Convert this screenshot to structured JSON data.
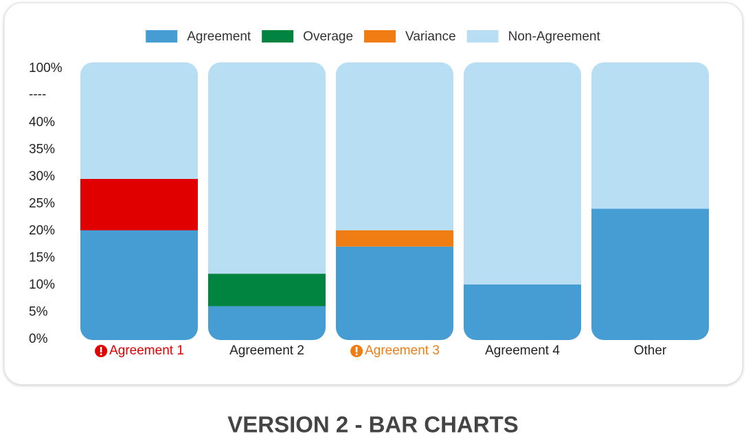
{
  "chart_data": {
    "type": "stacked-bar",
    "categories": [
      "Agreement 1",
      "Agreement 2",
      "Agreement 3",
      "Agreement 4",
      "Other"
    ],
    "category_colors": [
      "#e00000",
      "#222222",
      "#f07d14",
      "#222222",
      "#222222"
    ],
    "category_alerts": [
      true,
      false,
      true,
      false,
      false
    ],
    "series": [
      {
        "name": "Agreement",
        "color": "#459dd3",
        "values": [
          20,
          6,
          17,
          10,
          24
        ]
      },
      {
        "name": "Overage",
        "color": "#00843f",
        "point_colors": [
          "#e00000",
          "#00843f",
          "#00843f",
          "#00843f",
          "#00843f"
        ],
        "values": [
          9.5,
          6,
          0,
          0,
          0
        ]
      },
      {
        "name": "Variance",
        "color": "#f07d14",
        "values": [
          0,
          0,
          3,
          0,
          0
        ]
      },
      {
        "name": "Non-Agreement",
        "color": "#b8def4",
        "values": [
          70.5,
          88,
          80,
          90,
          76
        ]
      }
    ],
    "ylim": [
      0,
      100
    ],
    "axis_break": {
      "from": 40,
      "to": 100,
      "label": "----"
    },
    "yticks": [
      {
        "value": 0,
        "label": "0%"
      },
      {
        "value": 5,
        "label": "5%"
      },
      {
        "value": 10,
        "label": "10%"
      },
      {
        "value": 15,
        "label": "15%"
      },
      {
        "value": 20,
        "label": "20%"
      },
      {
        "value": 25,
        "label": "25%"
      },
      {
        "value": 30,
        "label": "30%"
      },
      {
        "value": 35,
        "label": "35%"
      },
      {
        "value": 40,
        "label": "40%"
      },
      {
        "value": 100,
        "label": "100%"
      }
    ],
    "legend": "top"
  },
  "caption": "VERSION 2 - BAR CHARTS"
}
